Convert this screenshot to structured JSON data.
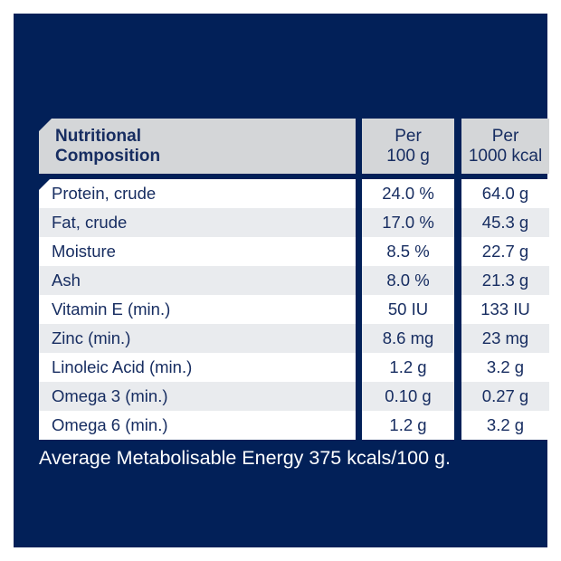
{
  "page": {
    "background_color": "#ffffff",
    "panel_color": "#022058",
    "header_bg": "#d4d6d8",
    "row_bg": "#ffffff",
    "row_alt_bg": "#e9ebee",
    "text_color": "#172d61",
    "footer_text_color": "#ffffff"
  },
  "table": {
    "header": {
      "col1": "Nutritional\nComposition",
      "col2": "Per\n100 g",
      "col3": "Per\n1000 kcal"
    },
    "rows": [
      {
        "label": "Protein, crude",
        "per_100g": "24.0 %",
        "per_1000kcal": "64.0 g"
      },
      {
        "label": "Fat, crude",
        "per_100g": "17.0 %",
        "per_1000kcal": "45.3 g"
      },
      {
        "label": "Moisture",
        "per_100g": "8.5 %",
        "per_1000kcal": "22.7 g"
      },
      {
        "label": "Ash",
        "per_100g": "8.0 %",
        "per_1000kcal": "21.3 g"
      },
      {
        "label": "Vitamin E (min.)",
        "per_100g": "50 IU",
        "per_1000kcal": "133 IU"
      },
      {
        "label": "Zinc (min.)",
        "per_100g": "8.6 mg",
        "per_1000kcal": "23 mg"
      },
      {
        "label": "Linoleic Acid (min.)",
        "per_100g": "1.2 g",
        "per_1000kcal": "3.2 g"
      },
      {
        "label": "Omega 3 (min.)",
        "per_100g": "0.10 g",
        "per_1000kcal": "0.27 g"
      },
      {
        "label": "Omega 6 (min.)",
        "per_100g": "1.2 g",
        "per_1000kcal": "3.2 g"
      }
    ]
  },
  "footer": {
    "text": "Average Metabolisable Energy 375 kcals/100 g."
  }
}
